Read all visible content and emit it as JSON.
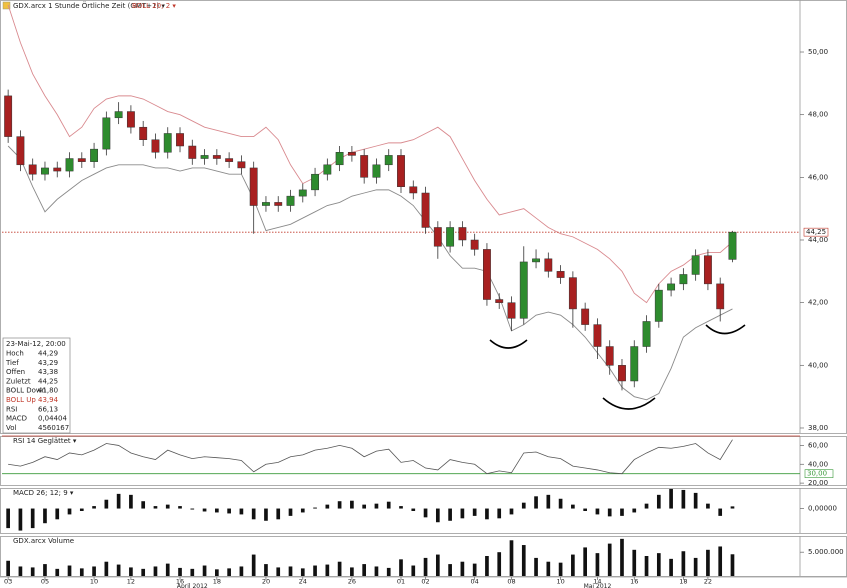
{
  "header": {
    "title": "GDX.arcx 1 Stunde Örtliche Zeit (GMT+1) ▾",
    "subtitle": "BOLL 20; 2 ▾"
  },
  "info": {
    "date": "23-Mai-12, 20:00",
    "rows": [
      [
        "Hoch",
        "44,29"
      ],
      [
        "Tief",
        "43,29"
      ],
      [
        "Offen",
        "43,38"
      ],
      [
        "Zuletzt",
        "44,25"
      ],
      [
        "BOLL Down",
        "41,80"
      ],
      [
        "BOLL Up",
        "43,94"
      ],
      [
        "RSI",
        "66,13"
      ],
      [
        "MACD",
        "0,04404"
      ],
      [
        "Vol",
        "4560167"
      ]
    ]
  },
  "chart_data": [
    {
      "type": "candlestick",
      "x": [
        0,
        1,
        2,
        3,
        4,
        5,
        6,
        7,
        8,
        9,
        10,
        11,
        12,
        13,
        14,
        15,
        16,
        17,
        18,
        19,
        20,
        21,
        22,
        23,
        24,
        25,
        26,
        27,
        28,
        29,
        30,
        31,
        32,
        33,
        34,
        35,
        36,
        37,
        38,
        39,
        40,
        41,
        42,
        43,
        44,
        45,
        46,
        47,
        48,
        49,
        50,
        51,
        52,
        53,
        54,
        55,
        56,
        57,
        58,
        59
      ],
      "open": [
        48.6,
        47.3,
        46.4,
        46.1,
        46.3,
        46.2,
        46.6,
        46.5,
        46.9,
        47.9,
        48.1,
        47.6,
        47.2,
        46.8,
        47.4,
        47.0,
        46.6,
        46.7,
        46.6,
        46.5,
        46.3,
        45.1,
        45.2,
        45.1,
        45.4,
        45.6,
        46.1,
        46.4,
        46.8,
        46.7,
        46.0,
        46.4,
        46.7,
        45.7,
        45.5,
        44.4,
        43.8,
        44.4,
        44.0,
        43.7,
        42.1,
        42.0,
        41.5,
        43.3,
        43.4,
        43.0,
        42.8,
        41.8,
        41.3,
        40.6,
        40.0,
        39.5,
        40.6,
        41.4,
        42.4,
        42.6,
        42.9,
        43.5,
        42.6,
        43.38
      ],
      "high": [
        48.8,
        47.5,
        46.6,
        46.5,
        46.5,
        46.8,
        46.8,
        47.1,
        48.1,
        48.4,
        48.3,
        47.8,
        47.4,
        47.6,
        47.6,
        47.2,
        46.9,
        46.9,
        46.8,
        46.7,
        46.5,
        45.4,
        45.4,
        45.6,
        45.8,
        46.3,
        46.6,
        47.0,
        47.0,
        46.9,
        46.6,
        46.9,
        46.9,
        45.9,
        45.7,
        44.6,
        44.6,
        44.6,
        44.2,
        43.9,
        42.3,
        42.2,
        43.8,
        43.7,
        43.6,
        43.2,
        43.0,
        42.0,
        41.5,
        40.8,
        40.2,
        40.8,
        41.6,
        42.6,
        42.8,
        43.1,
        43.7,
        43.7,
        42.8,
        44.29
      ],
      "low": [
        47.1,
        46.2,
        45.9,
        45.9,
        46.0,
        46.0,
        46.3,
        46.3,
        46.7,
        47.7,
        47.4,
        47.0,
        46.6,
        46.6,
        46.8,
        46.4,
        46.4,
        46.4,
        46.3,
        46.1,
        44.2,
        44.9,
        44.9,
        44.9,
        45.2,
        45.4,
        45.9,
        46.2,
        46.5,
        45.8,
        45.8,
        46.2,
        45.5,
        45.3,
        44.2,
        43.4,
        43.6,
        43.8,
        43.5,
        41.9,
        41.8,
        41.1,
        41.3,
        43.1,
        42.8,
        42.6,
        41.2,
        41.1,
        40.2,
        39.7,
        39.2,
        39.3,
        40.4,
        41.2,
        42.2,
        42.4,
        42.7,
        42.4,
        41.4,
        43.29
      ],
      "close": [
        47.3,
        46.4,
        46.1,
        46.3,
        46.2,
        46.6,
        46.5,
        46.9,
        47.9,
        48.1,
        47.6,
        47.2,
        46.8,
        47.4,
        47.0,
        46.6,
        46.7,
        46.6,
        46.5,
        46.3,
        45.1,
        45.2,
        45.1,
        45.4,
        45.6,
        46.1,
        46.4,
        46.8,
        46.7,
        46.0,
        46.4,
        46.7,
        45.7,
        45.5,
        44.4,
        43.8,
        44.4,
        44.0,
        43.7,
        42.1,
        42.0,
        41.5,
        43.3,
        43.4,
        43.0,
        42.8,
        41.8,
        41.3,
        40.6,
        40.0,
        39.5,
        40.6,
        41.4,
        42.4,
        42.6,
        42.9,
        43.5,
        42.6,
        41.8,
        44.25
      ],
      "up_color": "#2e8b2e",
      "down_color": "#a82020",
      "overlays": [
        {
          "color": "#d98a8f",
          "values": [
            51.5,
            50.3,
            49.3,
            48.6,
            48.0,
            47.3,
            47.6,
            48.2,
            48.5,
            48.6,
            48.6,
            48.5,
            48.3,
            48.1,
            48.0,
            47.8,
            47.6,
            47.5,
            47.4,
            47.3,
            47.3,
            47.6,
            47.2,
            46.4,
            45.8,
            46.0,
            46.3,
            46.6,
            46.8,
            46.9,
            47.0,
            47.1,
            47.1,
            47.2,
            47.4,
            47.6,
            47.3,
            46.6,
            45.9,
            45.3,
            44.8,
            44.9,
            45.0,
            44.7,
            44.4,
            44.2,
            44.1,
            43.9,
            43.7,
            43.4,
            43.0,
            42.3,
            42.0,
            42.6,
            43.0,
            43.2,
            43.5,
            43.6,
            43.6,
            43.94
          ]
        },
        {
          "color": "#8a8a8a",
          "values": [
            47.0,
            46.6,
            45.7,
            44.9,
            45.3,
            45.6,
            45.9,
            46.1,
            46.3,
            46.4,
            46.4,
            46.4,
            46.3,
            46.3,
            46.2,
            46.3,
            46.3,
            46.2,
            46.1,
            46.1,
            45.3,
            44.3,
            44.4,
            44.5,
            44.7,
            44.9,
            45.1,
            45.2,
            45.4,
            45.5,
            45.6,
            45.6,
            45.4,
            45.1,
            44.6,
            44.1,
            43.5,
            43.1,
            43.1,
            43.0,
            42.2,
            41.1,
            41.3,
            41.6,
            41.7,
            41.6,
            41.3,
            40.9,
            40.4,
            39.9,
            39.3,
            39.0,
            38.9,
            39.1,
            39.9,
            40.9,
            41.2,
            41.4,
            41.6,
            41.8
          ]
        }
      ],
      "last": {
        "value": 44.25,
        "label": "44,25"
      },
      "last_color": "#c0392b",
      "ylim": [
        37.84,
        51.66
      ],
      "yticks": [
        {
          "value": 38,
          "label": "38,00"
        },
        {
          "value": 40,
          "label": "40,00"
        },
        {
          "value": 42,
          "label": "42,00"
        },
        {
          "value": 44,
          "label": "44,00"
        },
        {
          "value": 46,
          "label": "46,00"
        },
        {
          "value": 48,
          "label": "48,00"
        },
        {
          "value": 50,
          "label": "50,00"
        }
      ],
      "xlim": [
        -0.5,
        64.5
      ],
      "xticks": [
        {
          "value": 0,
          "label": "03"
        },
        {
          "value": 3,
          "label": "05"
        },
        {
          "value": 7,
          "label": "10"
        },
        {
          "value": 10,
          "label": "12"
        },
        {
          "value": 14,
          "label": "16"
        },
        {
          "value": 17,
          "label": "18"
        },
        {
          "value": 21,
          "label": "20"
        },
        {
          "value": 24,
          "label": "24"
        },
        {
          "value": 28,
          "label": "26"
        },
        {
          "value": 32,
          "label": "01"
        },
        {
          "value": 34,
          "label": "02"
        },
        {
          "value": 38,
          "label": "04"
        },
        {
          "value": 41,
          "label": "08"
        },
        {
          "value": 45,
          "label": "10"
        },
        {
          "value": 48,
          "label": "14"
        },
        {
          "value": 51,
          "label": "16"
        },
        {
          "value": 55,
          "label": "18"
        },
        {
          "value": 57,
          "label": "22"
        }
      ],
      "months": [
        {
          "value": 15,
          "label": "April 2012"
        },
        {
          "value": 48,
          "label": "Mai 2012"
        }
      ]
    },
    {
      "type": "line",
      "title": "RSI 14 Geglättet ▾",
      "color": "#555",
      "values": [
        40,
        38,
        42,
        48,
        45,
        52,
        50,
        55,
        62,
        60,
        52,
        48,
        45,
        55,
        50,
        46,
        48,
        47,
        46,
        44,
        32,
        40,
        42,
        48,
        50,
        55,
        57,
        60,
        57,
        48,
        54,
        56,
        42,
        44,
        36,
        34,
        45,
        42,
        40,
        30,
        33,
        31,
        52,
        53,
        48,
        46,
        38,
        36,
        34,
        31,
        30,
        45,
        52,
        58,
        57,
        59,
        62,
        52,
        45,
        66.13
      ],
      "levels": [
        {
          "value": 30,
          "label": "30,00",
          "color": "#3a9a3a"
        },
        {
          "value": 70,
          "color": "#c0392b"
        }
      ],
      "ylim": [
        18,
        70
      ],
      "yticks": [
        {
          "value": 20,
          "label": "20,00"
        },
        {
          "value": 40,
          "label": "40,00"
        },
        {
          "value": 60,
          "label": "60,00"
        }
      ]
    },
    {
      "type": "bar",
      "title": "MACD 26; 12; 9 ▾",
      "color": "#111",
      "values": [
        -0.4,
        -0.45,
        -0.4,
        -0.3,
        -0.22,
        -0.12,
        -0.05,
        0.05,
        0.18,
        0.3,
        0.28,
        0.15,
        0.05,
        0.08,
        0.05,
        -0.02,
        -0.06,
        -0.08,
        -0.1,
        -0.12,
        -0.22,
        -0.25,
        -0.22,
        -0.15,
        -0.08,
        0.02,
        0.08,
        0.15,
        0.16,
        0.08,
        0.1,
        0.14,
        0.05,
        -0.05,
        -0.18,
        -0.28,
        -0.25,
        -0.2,
        -0.15,
        -0.22,
        -0.2,
        -0.12,
        0.12,
        0.25,
        0.28,
        0.2,
        0.08,
        -0.05,
        -0.12,
        -0.16,
        -0.15,
        -0.08,
        0.1,
        0.28,
        0.4,
        0.38,
        0.32,
        0.1,
        -0.15,
        0.04404
      ],
      "ylim": [
        -0.5,
        0.42
      ],
      "yticks": [
        {
          "value": 0,
          "label": "0,00000"
        }
      ]
    },
    {
      "type": "bar",
      "title": "GDX.arcx Volume",
      "color": "#111",
      "values": [
        3200000,
        2000000,
        1800000,
        2500000,
        1500000,
        2200000,
        1600000,
        2000000,
        3000000,
        2400000,
        1800000,
        1500000,
        2000000,
        2600000,
        1700000,
        1500000,
        2200000,
        1400000,
        1600000,
        2000000,
        4500000,
        2500000,
        1800000,
        2000000,
        1600000,
        2200000,
        2400000,
        3000000,
        1800000,
        2500000,
        2000000,
        1700000,
        3500000,
        2200000,
        3800000,
        4500000,
        2500000,
        3000000,
        2600000,
        4200000,
        5000000,
        7500000,
        6500000,
        3800000,
        3000000,
        2800000,
        4500000,
        6000000,
        4800000,
        6800000,
        7800000,
        5500000,
        4200000,
        4800000,
        3600000,
        5200000,
        3800000,
        5500000,
        6200000,
        4560167
      ],
      "ylim": [
        0,
        8400000
      ],
      "yticks": [
        {
          "value": 5000000,
          "label": "5.000.000"
        }
      ]
    }
  ]
}
